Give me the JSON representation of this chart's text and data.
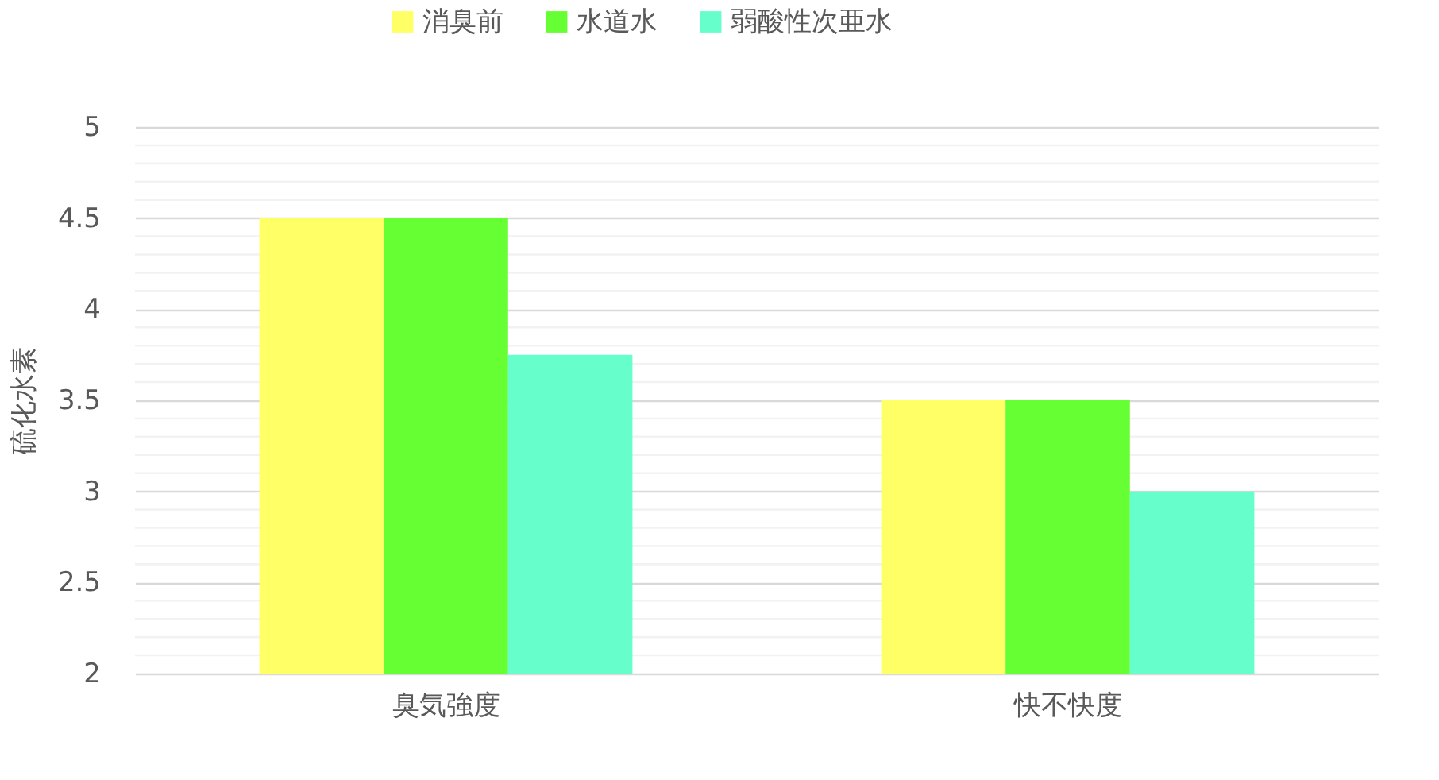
{
  "chart_data": {
    "type": "bar",
    "ylabel": "硫化水素",
    "categories": [
      "臭気強度",
      "快不快度"
    ],
    "series": [
      {
        "name": "消臭前",
        "color": "#ffff66",
        "values": [
          4.5,
          3.5
        ]
      },
      {
        "name": "水道水",
        "color": "#66ff33",
        "values": [
          4.5,
          3.5
        ]
      },
      {
        "name": "弱酸性次亜水",
        "color": "#66ffcc",
        "values": [
          3.75,
          3.0
        ]
      }
    ],
    "ylim": [
      2,
      5
    ],
    "yticks": [
      2,
      2.5,
      3,
      3.5,
      4,
      4.5,
      5
    ],
    "grid": true,
    "legend": "top"
  }
}
